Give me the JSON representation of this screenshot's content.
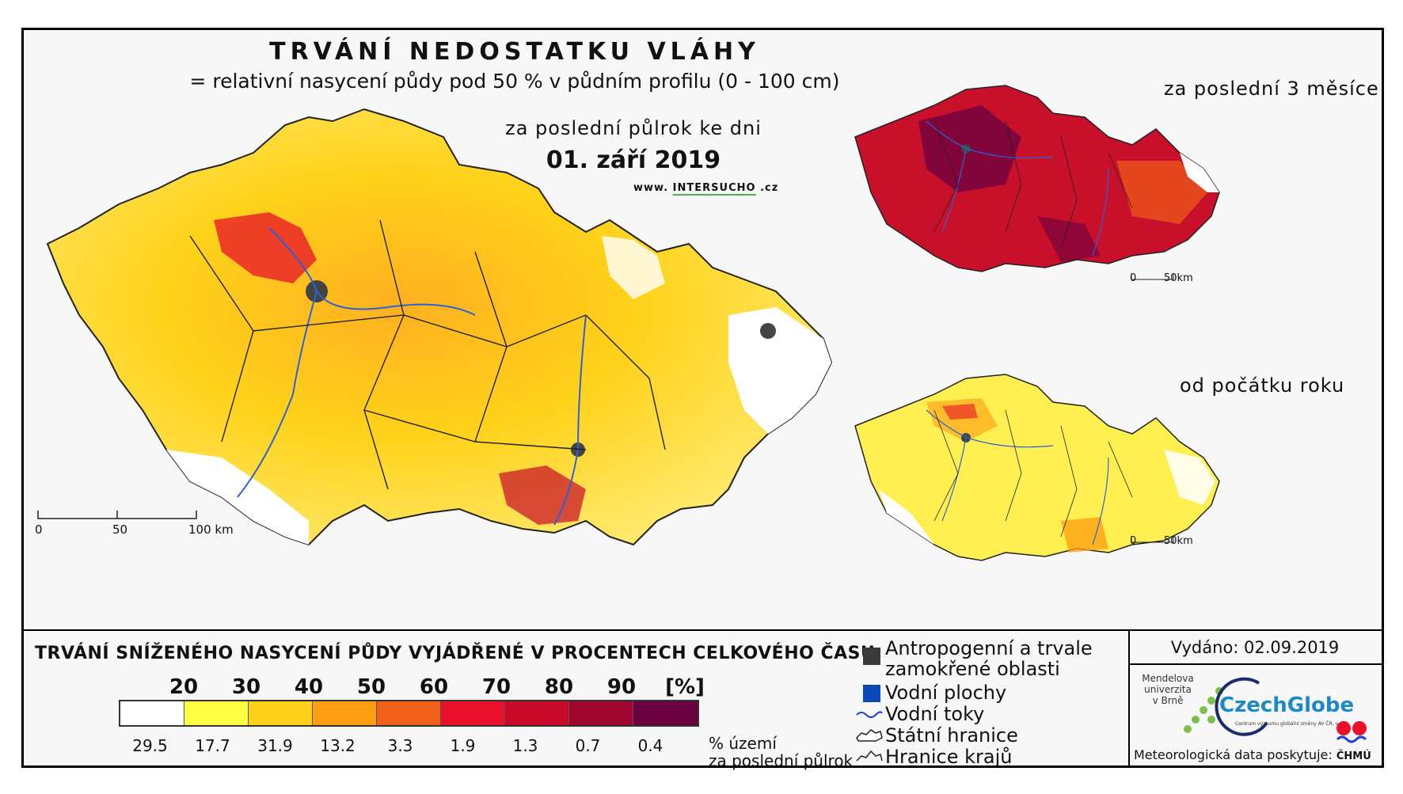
{
  "header": {
    "title": "TRVÁNÍ NEDOSTATKU VLÁHY",
    "subtitle": "= relativní nasycení půdy pod 50 % v půdním profilu (0 - 100 cm)",
    "period_label": "za poslední půlrok ke dni",
    "period_date": "01. září 2019",
    "website_prefix": "www.",
    "website_inter": "INTER",
    "website_sucho": "SUCHO",
    "website_suffix": ".cz"
  },
  "main_map": {
    "scale_labels": [
      "0",
      "50",
      "100 km"
    ]
  },
  "insets": [
    {
      "title": "za poslední 3 měsíce",
      "scale_labels": [
        "0",
        "50km"
      ]
    },
    {
      "title": "od počátku roku",
      "scale_labels": [
        "0",
        "50km"
      ]
    }
  ],
  "legend": {
    "title": "TRVÁNÍ SNÍŽENÉHO NASYCENÍ PŮDY VYJÁDŘENÉ V PROCENTECH CELKOVÉHO ČASU",
    "thresholds": [
      "20",
      "30",
      "40",
      "50",
      "60",
      "70",
      "80",
      "90",
      "[%]"
    ],
    "colors": [
      "#ffffff",
      "#ffff44",
      "#ffd21a",
      "#ff9e10",
      "#f06018",
      "#e8102a",
      "#c80a28",
      "#a00530",
      "#6a0040"
    ],
    "percentages": [
      "29.5",
      "17.7",
      "31.9",
      "13.2",
      "3.3",
      "1.9",
      "1.3",
      "0.7",
      "0.4"
    ],
    "percent_label_line1": "% území",
    "percent_label_line2": "za poslední půlrok"
  },
  "symbols": {
    "anthropogenic_line1": "Antropogenní a trvale",
    "anthropogenic_line2": "zamokřené oblasti",
    "water_bodies": "Vodní plochy",
    "water_courses": "Vodní toky",
    "state_border": "Státní hranice",
    "region_border": "Hranice krajů"
  },
  "credits": {
    "issued": "Vydáno: 02.09.2019",
    "mendel_line1": "Mendelova",
    "mendel_line2": "univerzita",
    "mendel_line3": "v Brně",
    "czechglobe": "CzechGlobe",
    "czechglobe_sub": "Centrum výzkumu globální změny AV ČR, v. v. i.",
    "meteo": "Meteorologická data poskytuje:",
    "chmu": "ČHMÚ"
  }
}
